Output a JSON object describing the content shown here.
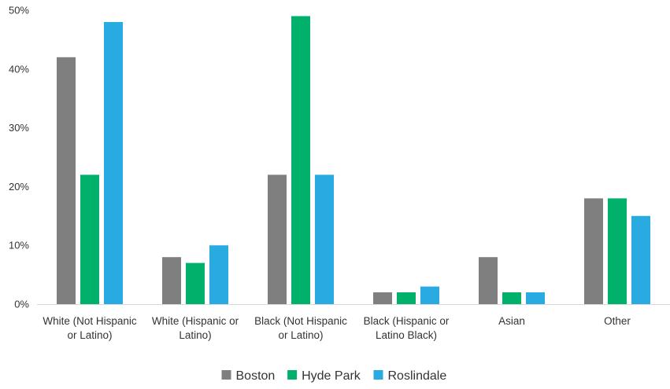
{
  "chart_data": {
    "type": "bar",
    "title": "",
    "xlabel": "",
    "ylabel": "",
    "ylim": [
      0,
      50
    ],
    "yticks": [
      0,
      10,
      20,
      30,
      40,
      50
    ],
    "ytick_labels": [
      "0%",
      "10%",
      "20%",
      "30%",
      "40%",
      "50%"
    ],
    "grid": false,
    "legend_position": "bottom",
    "categories": [
      [
        "White (Not Hispanic",
        "or Latino)"
      ],
      [
        "White (Hispanic or",
        "Latino)"
      ],
      [
        "Black (Not Hispanic",
        "or Latino)"
      ],
      [
        "Black (Hispanic or",
        "Latino Black)"
      ],
      [
        "Asian"
      ],
      [
        "Other"
      ]
    ],
    "series": [
      {
        "name": "Boston",
        "color": "#7f7f7f",
        "values": [
          42,
          8,
          22,
          2,
          8,
          18
        ]
      },
      {
        "name": "Hyde Park",
        "color": "#00b06b",
        "values": [
          22,
          7,
          49,
          2,
          2,
          18
        ]
      },
      {
        "name": "Roslindale",
        "color": "#29abe2",
        "values": [
          48,
          10,
          22,
          3,
          2,
          15
        ]
      }
    ]
  }
}
